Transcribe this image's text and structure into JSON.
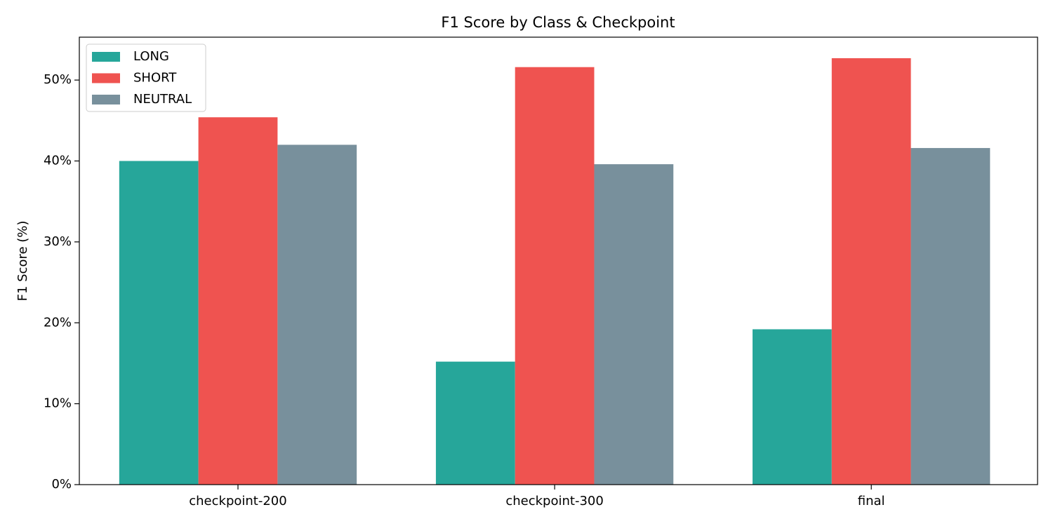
{
  "chart_data": {
    "type": "bar",
    "title": "F1 Score by Class & Checkpoint",
    "y_label": "F1 Score (%)",
    "categories": [
      "checkpoint-200",
      "checkpoint-300",
      "final"
    ],
    "series": [
      {
        "name": "LONG",
        "color": "#26a69a",
        "values": [
          40.0,
          15.2,
          19.2
        ]
      },
      {
        "name": "SHORT",
        "color": "#ef5350",
        "values": [
          45.4,
          51.6,
          52.7
        ]
      },
      {
        "name": "NEUTRAL",
        "color": "#78909c",
        "values": [
          42.0,
          39.6,
          41.6
        ]
      }
    ],
    "ylim": [
      0,
      55.3
    ],
    "yticks": [
      {
        "value": 0,
        "label": "0%"
      },
      {
        "value": 10,
        "label": "10%"
      },
      {
        "value": 20,
        "label": "20%"
      },
      {
        "value": 30,
        "label": "30%"
      },
      {
        "value": 40,
        "label": "40%"
      },
      {
        "value": 50,
        "label": "50%"
      }
    ],
    "grid": false,
    "legend": "upper left"
  }
}
